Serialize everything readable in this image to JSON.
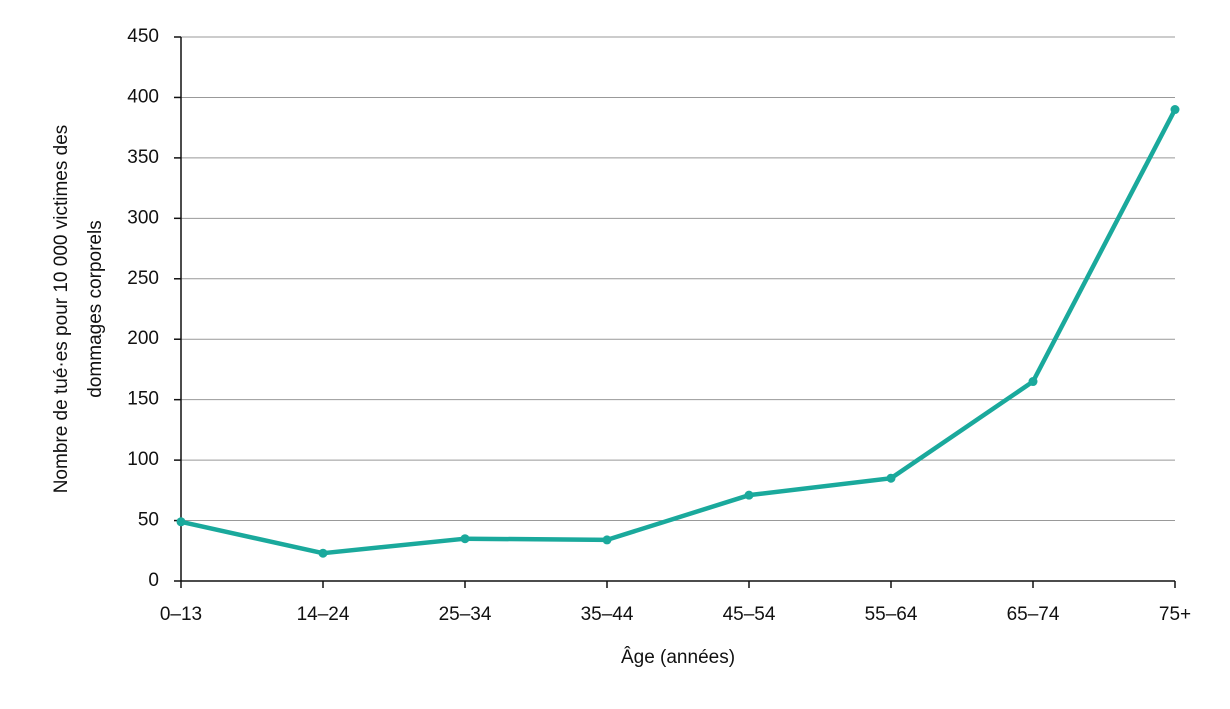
{
  "chart_data": {
    "type": "line",
    "x_label": "Âge (années)",
    "y_label": [
      "Nombre de tué·es pour 10 000 victimes des",
      "dommages corporels"
    ],
    "categories": [
      "0–13",
      "14–24",
      "25–34",
      "35–44",
      "45–54",
      "55–64",
      "65–74",
      "75+"
    ],
    "values": [
      49,
      23,
      35,
      34,
      71,
      85,
      165,
      390
    ],
    "color": "#1aa99c",
    "ylim": [
      0,
      450
    ],
    "yticks": [
      0,
      50,
      100,
      150,
      200,
      250,
      300,
      350,
      400,
      450
    ],
    "grid": true
  }
}
